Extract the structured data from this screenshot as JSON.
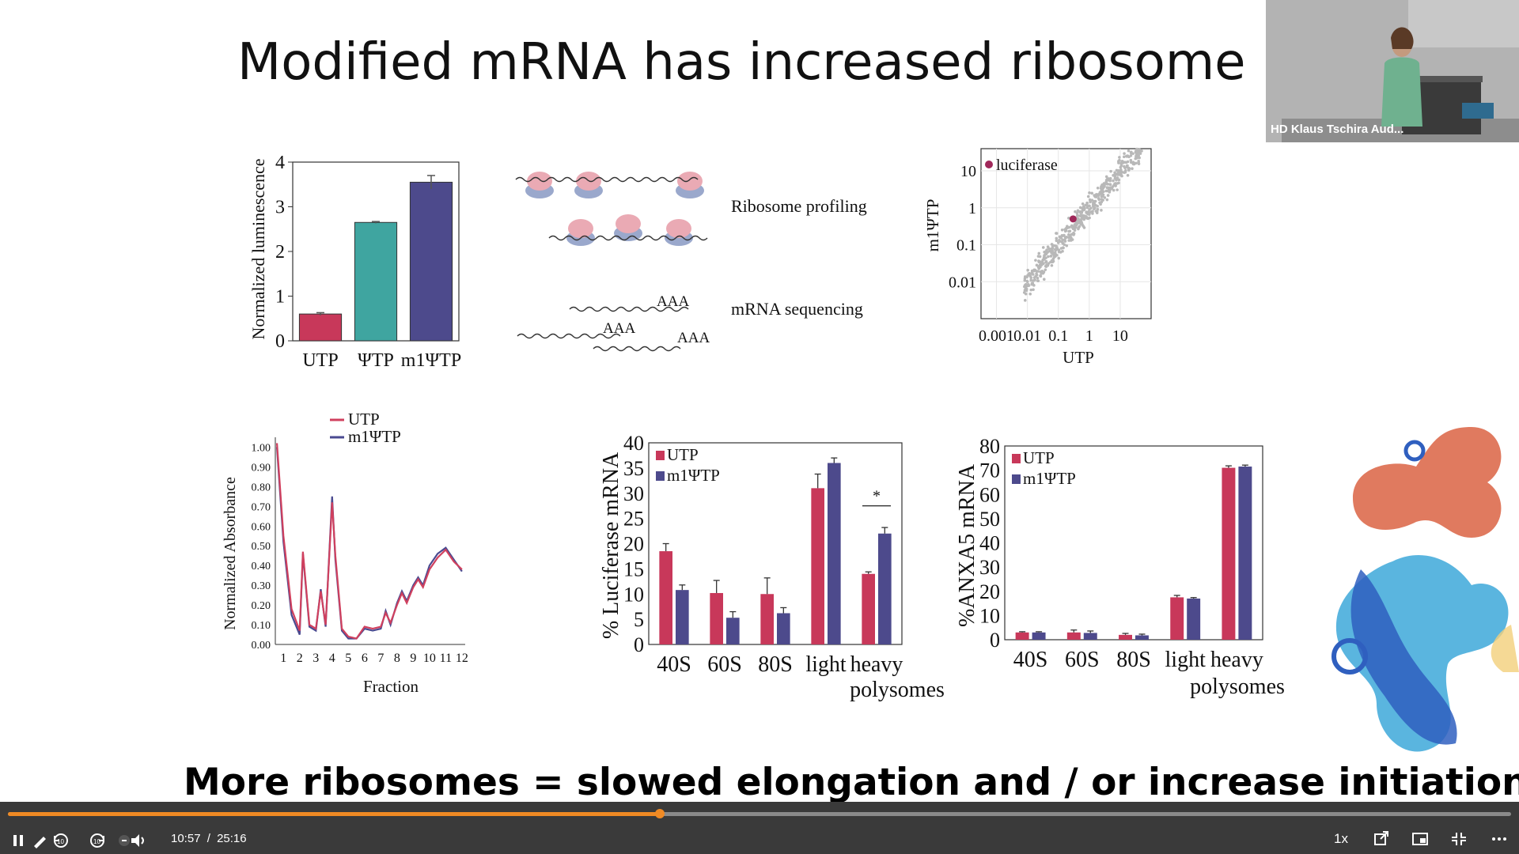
{
  "slide": {
    "title": "Modified mRNA has increased ribosome load",
    "claim": "More ribosomes = slowed elongation and / or increase initiation"
  },
  "speaker_video": {
    "label": "HD Klaus Tschira Aud..."
  },
  "luminescence_chart": {
    "type": "bar",
    "categories": [
      "UTP",
      "ΨTP",
      "m1ΨTP"
    ],
    "values": [
      0.6,
      2.65,
      3.55
    ],
    "errors": [
      0.03,
      0.02,
      0.15
    ],
    "colors": [
      "#c8385a",
      "#3fa5a0",
      "#4d4a8c"
    ],
    "ylabel": "Normalized luminescence",
    "yticks": [
      "0",
      "1",
      "2",
      "3",
      "4"
    ],
    "ylim": [
      0,
      4
    ]
  },
  "schematic": {
    "ribosome_label": "Ribosome profiling",
    "mrna_label": "mRNA sequencing",
    "polya_labels": [
      "AAA",
      "AAA",
      "AAA"
    ]
  },
  "scatter_chart": {
    "type": "scatter",
    "legend": "luciferase",
    "xlabel": "UTP",
    "ylabel": "m1ΨTP",
    "xticks": [
      "0.001",
      "0.01",
      "0.1",
      "1",
      "10"
    ],
    "yticks": [
      "10",
      "1",
      "0.1",
      "0.01"
    ],
    "highlight": {
      "x": 0.3,
      "y": 0.5
    },
    "highlight_color": "#a0285a",
    "point_color": "#b8b8b8"
  },
  "absorbance_chart": {
    "type": "line",
    "ylabel": "Normalized Absorbance",
    "xlabel": "Fraction",
    "yticks": [
      "0.00",
      "0.10",
      "0.20",
      "0.30",
      "0.40",
      "0.50",
      "0.60",
      "0.70",
      "0.80",
      "0.90",
      "1.00"
    ],
    "xticks": [
      "1",
      "2",
      "3",
      "4",
      "5",
      "6",
      "7",
      "8",
      "9",
      "10",
      "11",
      "12"
    ],
    "series": [
      {
        "name": "UTP",
        "color": "#d0405e"
      },
      {
        "name": "m1ΨTP",
        "color": "#4a4a90"
      }
    ],
    "x": [
      0.6,
      1.0,
      1.5,
      2.0,
      2.2,
      2.6,
      3.0,
      3.3,
      3.6,
      4.0,
      4.2,
      4.6,
      5.0,
      5.5,
      6.0,
      6.5,
      7.0,
      7.3,
      7.6,
      8.0,
      8.3,
      8.6,
      9.0,
      9.3,
      9.6,
      10.0,
      10.5,
      11.0,
      11.5,
      12.0
    ],
    "values_utp": [
      1.02,
      0.55,
      0.18,
      0.07,
      0.47,
      0.1,
      0.08,
      0.27,
      0.1,
      0.72,
      0.45,
      0.08,
      0.04,
      0.03,
      0.09,
      0.08,
      0.09,
      0.16,
      0.11,
      0.2,
      0.26,
      0.21,
      0.29,
      0.33,
      0.29,
      0.38,
      0.44,
      0.48,
      0.42,
      0.38
    ],
    "values_m1": [
      1.0,
      0.52,
      0.15,
      0.05,
      0.46,
      0.09,
      0.07,
      0.28,
      0.09,
      0.75,
      0.43,
      0.07,
      0.03,
      0.03,
      0.08,
      0.07,
      0.08,
      0.17,
      0.1,
      0.21,
      0.27,
      0.22,
      0.3,
      0.34,
      0.3,
      0.4,
      0.46,
      0.49,
      0.43,
      0.37
    ],
    "ylim": [
      0,
      1.05
    ],
    "xlim": [
      0.5,
      12.2
    ]
  },
  "luciferase_chart": {
    "type": "bar",
    "ylabel": "% Luciferase mRNA",
    "categories": [
      "40S",
      "60S",
      "80S",
      "light",
      "heavy"
    ],
    "group_label": "polysomes",
    "series": [
      {
        "name": "UTP",
        "color": "#c8385a",
        "values": [
          18.5,
          10.2,
          10.0,
          31.0,
          14.0
        ],
        "errors": [
          1.5,
          2.5,
          3.2,
          2.8,
          0.4
        ]
      },
      {
        "name": "m1ΨTP",
        "color": "#4d4a8c",
        "values": [
          10.8,
          5.3,
          6.2,
          36.0,
          22.0
        ],
        "errors": [
          1.0,
          1.2,
          1.1,
          1.0,
          1.2
        ]
      }
    ],
    "yticks": [
      "0",
      "5",
      "10",
      "15",
      "20",
      "25",
      "30",
      "35",
      "40"
    ],
    "ylim": [
      0,
      40
    ],
    "significance": "*"
  },
  "anxa5_chart": {
    "type": "bar",
    "ylabel": "%ANXA5 mRNA",
    "categories": [
      "40S",
      "60S",
      "80S",
      "light",
      "heavy"
    ],
    "group_label": "polysomes",
    "series": [
      {
        "name": "UTP",
        "color": "#c8385a",
        "values": [
          3.0,
          3.0,
          2.0,
          17.5,
          71.0
        ],
        "errors": [
          0.3,
          1.0,
          0.6,
          0.8,
          0.8
        ]
      },
      {
        "name": "m1ΨTP",
        "color": "#4d4a8c",
        "values": [
          3.0,
          2.8,
          1.8,
          17.0,
          71.5
        ],
        "errors": [
          0.3,
          0.8,
          0.5,
          0.4,
          0.6
        ]
      }
    ],
    "yticks": [
      "0",
      "10",
      "20",
      "30",
      "40",
      "50",
      "60",
      "70",
      "80"
    ],
    "ylim": [
      0,
      80
    ]
  },
  "player": {
    "current_time": "10:57",
    "separator": "/",
    "duration": "25:16",
    "progress_fraction": 0.4335,
    "speed": "1x",
    "accent": "#f08a24"
  }
}
